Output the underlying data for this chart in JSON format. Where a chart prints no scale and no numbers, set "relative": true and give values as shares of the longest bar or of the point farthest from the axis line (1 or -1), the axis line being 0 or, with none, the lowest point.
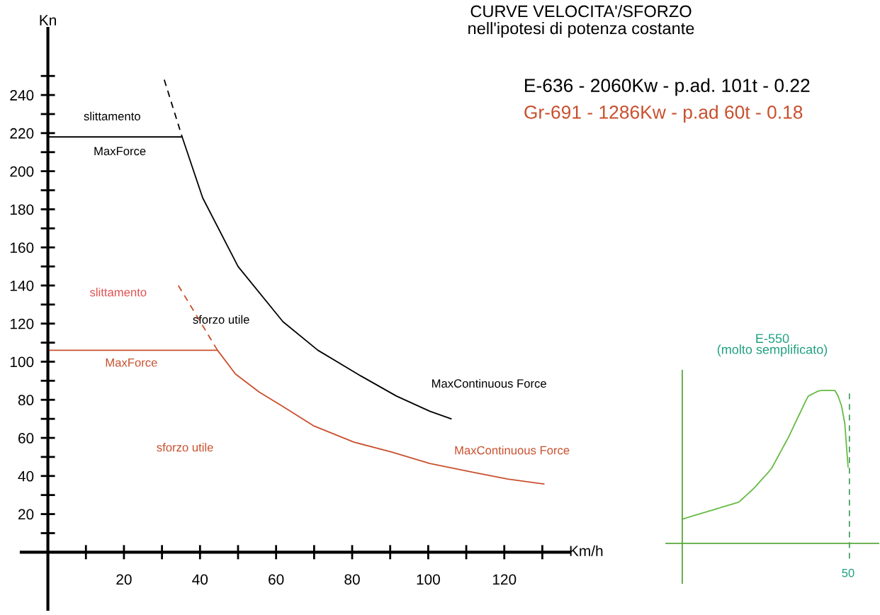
{
  "chart_data": [
    {
      "type": "line",
      "title": "CURVE VELOCITA'/SFORZO",
      "subtitle": "nell'ipotesi di potenza costante",
      "xlabel": "Km/h",
      "ylabel": "Kn",
      "xlim": [
        -7,
        137
      ],
      "ylim": [
        -30,
        275
      ],
      "xticks": [
        20,
        40,
        60,
        80,
        100,
        120
      ],
      "yticks": [
        20,
        40,
        60,
        80,
        100,
        120,
        140,
        160,
        180,
        200,
        220,
        240
      ],
      "grid": false,
      "legend": "top right",
      "marker": "none",
      "series": [
        {
          "name": "E-636 - 2060Kw - p.ad. 101t - 0.22",
          "color": "#000000",
          "x": [
            0,
            35.3,
            40.7,
            50,
            61.8,
            71,
            82.3,
            91.6,
            100.4,
            106
          ],
          "values": [
            218,
            218,
            186,
            150,
            121,
            106,
            92.5,
            82,
            74,
            70
          ]
        },
        {
          "color": "#000000",
          "line_style": "dashed",
          "x": [
            30.6,
            35.3
          ],
          "values": [
            248,
            218
          ]
        },
        {
          "name": "Gr-691 - 1286Kw - p.ad 60t - 0.18",
          "color": "#c8502e",
          "x": [
            0,
            44.6,
            49.3,
            55.6,
            61.8,
            69.8,
            80.4,
            90.3,
            100.4,
            111.6,
            120.9,
            130.4
          ],
          "values": [
            106,
            106,
            93.6,
            84,
            76.5,
            66.4,
            57.8,
            52.6,
            46.6,
            42,
            38.4,
            35.8
          ]
        },
        {
          "color": "#c8502e",
          "line_style": "dashed",
          "x": [
            34.3,
            44.6
          ],
          "values": [
            140,
            106
          ]
        }
      ],
      "annotations": [
        "slittamento",
        "MaxForce",
        "slittamento",
        "sforzo utile",
        "MaxForce",
        "MaxContinuous Force",
        "sforzo utile",
        "MaxContinuous Force"
      ]
    },
    {
      "type": "line",
      "title": "E-550\n(molto semplificato)",
      "relative": true,
      "marker": "none",
      "grid": false,
      "categories": [
        null,
        null,
        null,
        null,
        null,
        null,
        null,
        null,
        null,
        null,
        null,
        null,
        null,
        null,
        null,
        null,
        null,
        null,
        null,
        null,
        null,
        null,
        null,
        null,
        null,
        null,
        null,
        null,
        null,
        null,
        null,
        null,
        null,
        null,
        null,
        null,
        null,
        null,
        null,
        null,
        null,
        null,
        null,
        null,
        null,
        null,
        null,
        null,
        null,
        null,
        null
      ],
      "series": [
        {
          "color": "#66bb44",
          "values": [
            0.159,
            0.165,
            0.172,
            0.178,
            0.185,
            0.191,
            0.198,
            0.204,
            0.211,
            0.217,
            0.224,
            0.23,
            0.237,
            0.243,
            0.25,
            0.256,
            0.263,
            0.269,
            0.288,
            0.308,
            0.328,
            0.348,
            0.37,
            0.394,
            0.418,
            0.442,
            0.466,
            0.493,
            0.533,
            0.573,
            0.613,
            0.653,
            0.693,
            0.738,
            0.784,
            0.83,
            0.875,
            0.921,
            0.963,
            0.974,
            0.985,
            0.996,
            1,
            1,
            1,
            1,
            1,
            0.963,
            0.901,
            0.786,
            0.5
          ]
        }
      ],
      "annotations": [
        "50"
      ]
    }
  ]
}
